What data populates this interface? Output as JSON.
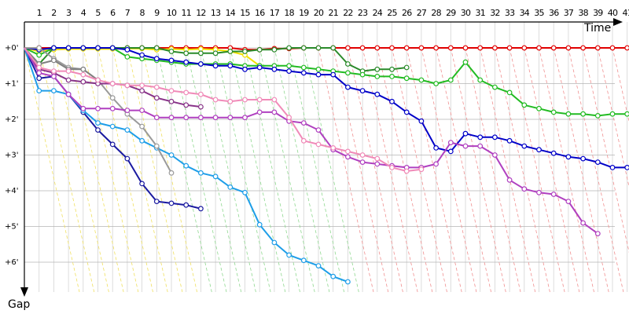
{
  "chart_data": {
    "type": "line",
    "x_axis_label": "Time",
    "y_axis_label": "Gap",
    "laps": [
      "1",
      "2",
      "3",
      "4",
      "5",
      "6",
      "7",
      "8",
      "9",
      "10",
      "11",
      "12",
      "13",
      "14",
      "15",
      "16",
      "17",
      "18",
      "19",
      "20",
      "21",
      "22",
      "23",
      "24",
      "25",
      "26",
      "27",
      "28",
      "29",
      "30",
      "31",
      "32",
      "33",
      "34",
      "35",
      "36",
      "37",
      "38",
      "39",
      "40",
      "41"
    ],
    "lap_label_text": "1 2 3 4 5 6 7 8 9 10 11 12 13 14 15 16 17 18 19 20 21 22 23 24 25 26 27 28 29 30 31 32 33 34 35 36 37 38 39 4041",
    "y_ticks": [
      "+0'",
      "+1'",
      "+2'",
      "+3'",
      "+4'",
      "+5'",
      "+6'"
    ],
    "y_range_minutes": [
      -0.6,
      7.0
    ],
    "grid": true,
    "series": [
      {
        "color": "#e00000",
        "points": [
          [
            0,
            0
          ],
          [
            1,
            0
          ],
          [
            2,
            0
          ],
          [
            3,
            0
          ],
          [
            4,
            0
          ],
          [
            5,
            0
          ],
          [
            6,
            0
          ],
          [
            7,
            0
          ],
          [
            8,
            0
          ],
          [
            9,
            0
          ],
          [
            10,
            0
          ],
          [
            11,
            0
          ],
          [
            12,
            0
          ],
          [
            13,
            0
          ],
          [
            14,
            0
          ],
          [
            15,
            0.05
          ],
          [
            16,
            0.05
          ],
          [
            17,
            0.02
          ],
          [
            18,
            0.02
          ],
          [
            19,
            0
          ],
          [
            20,
            0
          ],
          [
            21,
            0
          ],
          [
            22,
            0
          ],
          [
            23,
            0
          ],
          [
            24,
            0
          ],
          [
            25,
            0
          ],
          [
            26,
            0
          ],
          [
            27,
            0
          ],
          [
            28,
            0
          ],
          [
            29,
            0
          ],
          [
            30,
            0
          ],
          [
            31,
            0
          ],
          [
            32,
            0
          ],
          [
            33,
            0
          ],
          [
            34,
            0
          ],
          [
            35,
            0
          ],
          [
            36,
            0
          ],
          [
            37,
            0
          ],
          [
            38,
            0
          ],
          [
            39,
            0
          ],
          [
            40,
            0
          ],
          [
            41,
            0
          ]
        ]
      },
      {
        "color": "#f0e000",
        "points": [
          [
            0,
            0
          ],
          [
            1,
            0.1
          ],
          [
            2,
            0.05
          ],
          [
            3,
            0.03
          ],
          [
            4,
            0.03
          ],
          [
            5,
            0.03
          ],
          [
            6,
            0.03
          ],
          [
            7,
            0.02
          ],
          [
            8,
            0.02
          ],
          [
            9,
            0.05
          ],
          [
            10,
            0.03
          ],
          [
            11,
            0.05
          ],
          [
            12,
            0.03
          ],
          [
            13,
            0.05
          ],
          [
            14,
            0.1
          ],
          [
            15,
            0.2
          ],
          [
            16,
            0.5
          ]
        ]
      },
      {
        "color": "#2a8a2a",
        "points": [
          [
            0,
            0
          ],
          [
            1,
            0.45
          ],
          [
            2,
            0
          ],
          [
            3,
            0
          ],
          [
            4,
            0
          ],
          [
            5,
            0
          ],
          [
            6,
            0
          ],
          [
            7,
            0
          ],
          [
            8,
            0
          ],
          [
            9,
            0
          ],
          [
            10,
            0.1
          ],
          [
            11,
            0.15
          ],
          [
            12,
            0.15
          ],
          [
            13,
            0.15
          ],
          [
            14,
            0.1
          ],
          [
            15,
            0.1
          ],
          [
            16,
            0.05
          ],
          [
            17,
            0.05
          ],
          [
            18,
            0
          ],
          [
            19,
            0
          ],
          [
            20,
            0
          ],
          [
            21,
            0
          ],
          [
            22,
            0.45
          ],
          [
            23,
            0.65
          ],
          [
            24,
            0.6
          ],
          [
            25,
            0.6
          ],
          [
            26,
            0.55
          ]
        ]
      },
      {
        "color": "#22bb22",
        "points": [
          [
            0,
            0
          ],
          [
            1,
            0.2
          ],
          [
            2,
            0
          ],
          [
            3,
            0
          ],
          [
            4,
            0
          ],
          [
            5,
            0
          ],
          [
            6,
            0
          ],
          [
            7,
            0.25
          ],
          [
            8,
            0.3
          ],
          [
            9,
            0.35
          ],
          [
            10,
            0.4
          ],
          [
            11,
            0.45
          ],
          [
            12,
            0.45
          ],
          [
            13,
            0.45
          ],
          [
            14,
            0.45
          ],
          [
            15,
            0.5
          ],
          [
            16,
            0.5
          ],
          [
            17,
            0.5
          ],
          [
            18,
            0.5
          ],
          [
            19,
            0.55
          ],
          [
            20,
            0.6
          ],
          [
            21,
            0.65
          ],
          [
            22,
            0.7
          ],
          [
            23,
            0.75
          ],
          [
            24,
            0.8
          ],
          [
            25,
            0.8
          ],
          [
            26,
            0.85
          ],
          [
            27,
            0.9
          ],
          [
            28,
            1.0
          ],
          [
            29,
            0.9
          ],
          [
            30,
            0.4
          ],
          [
            31,
            0.9
          ],
          [
            32,
            1.1
          ],
          [
            33,
            1.25
          ],
          [
            34,
            1.6
          ],
          [
            35,
            1.7
          ],
          [
            36,
            1.8
          ],
          [
            37,
            1.85
          ],
          [
            38,
            1.85
          ],
          [
            39,
            1.9
          ],
          [
            40,
            1.85
          ],
          [
            41,
            1.85
          ]
        ]
      },
      {
        "color": "#0000c8",
        "points": [
          [
            0,
            0
          ],
          [
            1,
            0.05
          ],
          [
            2,
            0
          ],
          [
            3,
            0
          ],
          [
            4,
            0
          ],
          [
            5,
            0
          ],
          [
            6,
            0
          ],
          [
            7,
            0.05
          ],
          [
            8,
            0.2
          ],
          [
            9,
            0.3
          ],
          [
            10,
            0.35
          ],
          [
            11,
            0.4
          ],
          [
            12,
            0.45
          ],
          [
            13,
            0.5
          ],
          [
            14,
            0.5
          ],
          [
            15,
            0.6
          ],
          [
            16,
            0.55
          ],
          [
            17,
            0.6
          ],
          [
            18,
            0.65
          ],
          [
            19,
            0.7
          ],
          [
            20,
            0.75
          ],
          [
            21,
            0.75
          ],
          [
            22,
            1.1
          ],
          [
            23,
            1.2
          ],
          [
            24,
            1.3
          ],
          [
            25,
            1.5
          ],
          [
            26,
            1.8
          ],
          [
            27,
            2.05
          ],
          [
            28,
            2.8
          ],
          [
            29,
            2.9
          ],
          [
            30,
            2.4
          ],
          [
            31,
            2.5
          ],
          [
            32,
            2.5
          ],
          [
            33,
            2.6
          ],
          [
            34,
            2.75
          ],
          [
            35,
            2.85
          ],
          [
            36,
            2.95
          ],
          [
            37,
            3.05
          ],
          [
            38,
            3.1
          ],
          [
            39,
            3.2
          ],
          [
            40,
            3.35
          ],
          [
            41,
            3.35
          ]
        ]
      },
      {
        "color": "#1a1aa0",
        "points": [
          [
            0,
            0
          ],
          [
            1,
            0.85
          ],
          [
            2,
            0.8
          ],
          [
            3,
            1.3
          ],
          [
            4,
            1.8
          ],
          [
            5,
            2.3
          ],
          [
            6,
            2.7
          ],
          [
            7,
            3.1
          ],
          [
            8,
            3.8
          ],
          [
            9,
            4.3
          ],
          [
            10,
            4.35
          ],
          [
            11,
            4.4
          ],
          [
            12,
            4.5
          ]
        ]
      },
      {
        "color": "#1e9ee8",
        "points": [
          [
            0,
            0
          ],
          [
            1,
            1.2
          ],
          [
            2,
            1.2
          ],
          [
            3,
            1.3
          ],
          [
            4,
            1.75
          ],
          [
            5,
            2.1
          ],
          [
            6,
            2.2
          ],
          [
            7,
            2.3
          ],
          [
            8,
            2.6
          ],
          [
            9,
            2.8
          ],
          [
            10,
            3.0
          ],
          [
            11,
            3.3
          ],
          [
            12,
            3.5
          ],
          [
            13,
            3.6
          ],
          [
            14,
            3.9
          ],
          [
            15,
            4.05
          ],
          [
            16,
            4.95
          ],
          [
            17,
            5.45
          ],
          [
            18,
            5.8
          ],
          [
            19,
            5.95
          ],
          [
            20,
            6.1
          ],
          [
            21,
            6.4
          ],
          [
            22,
            6.55
          ]
        ]
      },
      {
        "color": "#9a9a9a",
        "points": [
          [
            0,
            0
          ],
          [
            1,
            0
          ],
          [
            2,
            0.3
          ],
          [
            3,
            0.55
          ],
          [
            4,
            0.6
          ],
          [
            5,
            0.9
          ],
          [
            6,
            1.4
          ],
          [
            7,
            1.85
          ],
          [
            8,
            2.2
          ],
          [
            9,
            2.75
          ],
          [
            10,
            3.5
          ]
        ]
      },
      {
        "color": "#808080",
        "points": [
          [
            0,
            0
          ],
          [
            1,
            0.45
          ],
          [
            2,
            0.35
          ],
          [
            3,
            0.6
          ],
          [
            4,
            0.6
          ],
          [
            5,
            0.9
          ]
        ]
      },
      {
        "color": "#883388",
        "points": [
          [
            0,
            0
          ],
          [
            1,
            0.6
          ],
          [
            2,
            0.7
          ],
          [
            3,
            0.9
          ],
          [
            4,
            0.95
          ],
          [
            5,
            1.0
          ],
          [
            6,
            1.0
          ],
          [
            7,
            1.05
          ],
          [
            8,
            1.2
          ],
          [
            9,
            1.4
          ],
          [
            10,
            1.5
          ],
          [
            11,
            1.6
          ],
          [
            12,
            1.65
          ]
        ]
      },
      {
        "color": "#b040c0",
        "points": [
          [
            0,
            0
          ],
          [
            1,
            0.7
          ],
          [
            2,
            0.8
          ],
          [
            3,
            1.3
          ],
          [
            4,
            1.7
          ],
          [
            5,
            1.7
          ],
          [
            6,
            1.7
          ],
          [
            7,
            1.75
          ],
          [
            8,
            1.75
          ],
          [
            9,
            1.95
          ],
          [
            10,
            1.95
          ],
          [
            11,
            1.95
          ],
          [
            12,
            1.95
          ],
          [
            13,
            1.95
          ],
          [
            14,
            1.95
          ],
          [
            15,
            1.95
          ],
          [
            16,
            1.8
          ],
          [
            17,
            1.8
          ],
          [
            18,
            2.05
          ],
          [
            19,
            2.1
          ],
          [
            20,
            2.3
          ],
          [
            21,
            2.85
          ],
          [
            22,
            3.05
          ],
          [
            23,
            3.2
          ],
          [
            24,
            3.25
          ],
          [
            25,
            3.3
          ],
          [
            26,
            3.35
          ],
          [
            27,
            3.35
          ],
          [
            28,
            3.25
          ],
          [
            29,
            2.65
          ],
          [
            30,
            2.75
          ],
          [
            31,
            2.75
          ],
          [
            32,
            3.0
          ],
          [
            33,
            3.7
          ],
          [
            34,
            3.95
          ],
          [
            35,
            4.05
          ],
          [
            36,
            4.1
          ],
          [
            37,
            4.3
          ],
          [
            38,
            4.9
          ],
          [
            39,
            5.2
          ]
        ]
      },
      {
        "color": "#f08ab8",
        "points": [
          [
            0,
            0
          ],
          [
            1,
            0.55
          ],
          [
            2,
            0.65
          ],
          [
            3,
            0.65
          ],
          [
            4,
            0.75
          ],
          [
            5,
            0.9
          ],
          [
            6,
            1.0
          ],
          [
            7,
            1.05
          ],
          [
            8,
            1.05
          ],
          [
            9,
            1.1
          ],
          [
            10,
            1.2
          ],
          [
            11,
            1.25
          ],
          [
            12,
            1.3
          ],
          [
            13,
            1.45
          ],
          [
            14,
            1.5
          ],
          [
            15,
            1.45
          ],
          [
            16,
            1.45
          ],
          [
            17,
            1.45
          ],
          [
            18,
            1.95
          ],
          [
            19,
            2.6
          ],
          [
            20,
            2.7
          ],
          [
            21,
            2.8
          ],
          [
            22,
            2.9
          ],
          [
            23,
            3.0
          ],
          [
            24,
            3.1
          ],
          [
            25,
            3.35
          ],
          [
            26,
            3.45
          ],
          [
            27,
            3.4
          ]
        ]
      }
    ]
  }
}
